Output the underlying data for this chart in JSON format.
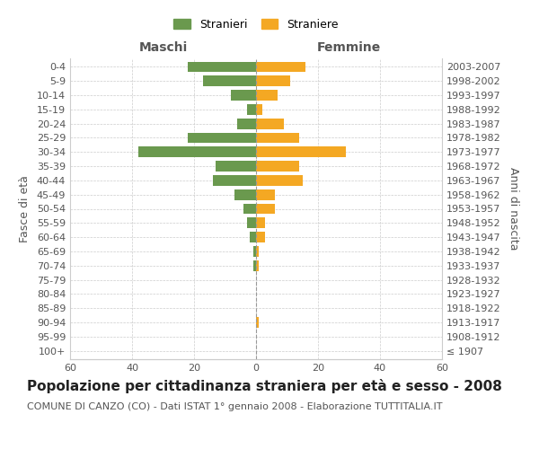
{
  "age_groups": [
    "100+",
    "95-99",
    "90-94",
    "85-89",
    "80-84",
    "75-79",
    "70-74",
    "65-69",
    "60-64",
    "55-59",
    "50-54",
    "45-49",
    "40-44",
    "35-39",
    "30-34",
    "25-29",
    "20-24",
    "15-19",
    "10-14",
    "5-9",
    "0-4"
  ],
  "birth_years": [
    "≤ 1907",
    "1908-1912",
    "1913-1917",
    "1918-1922",
    "1923-1927",
    "1928-1932",
    "1933-1937",
    "1938-1942",
    "1943-1947",
    "1948-1952",
    "1953-1957",
    "1958-1962",
    "1963-1967",
    "1968-1972",
    "1973-1977",
    "1978-1982",
    "1983-1987",
    "1988-1992",
    "1993-1997",
    "1998-2002",
    "2003-2007"
  ],
  "males": [
    0,
    0,
    0,
    0,
    0,
    0,
    1,
    1,
    2,
    3,
    4,
    7,
    14,
    13,
    38,
    22,
    6,
    3,
    8,
    17,
    22
  ],
  "females": [
    0,
    0,
    1,
    0,
    0,
    0,
    1,
    1,
    3,
    3,
    6,
    6,
    15,
    14,
    29,
    14,
    9,
    2,
    7,
    11,
    16
  ],
  "male_color": "#6a994e",
  "female_color": "#f4a823",
  "bar_height": 0.75,
  "xlim": 60,
  "title": "Popolazione per cittadinanza straniera per età e sesso - 2008",
  "subtitle": "COMUNE DI CANZO (CO) - Dati ISTAT 1° gennaio 2008 - Elaborazione TUTTITALIA.IT",
  "xlabel_left": "Maschi",
  "xlabel_right": "Femmine",
  "ylabel_left": "Fasce di età",
  "ylabel_right": "Anni di nascita",
  "legend_male": "Stranieri",
  "legend_female": "Straniere",
  "background_color": "#ffffff",
  "grid_color": "#cccccc",
  "title_fontsize": 11,
  "subtitle_fontsize": 8,
  "axis_label_fontsize": 9,
  "tick_fontsize": 8
}
